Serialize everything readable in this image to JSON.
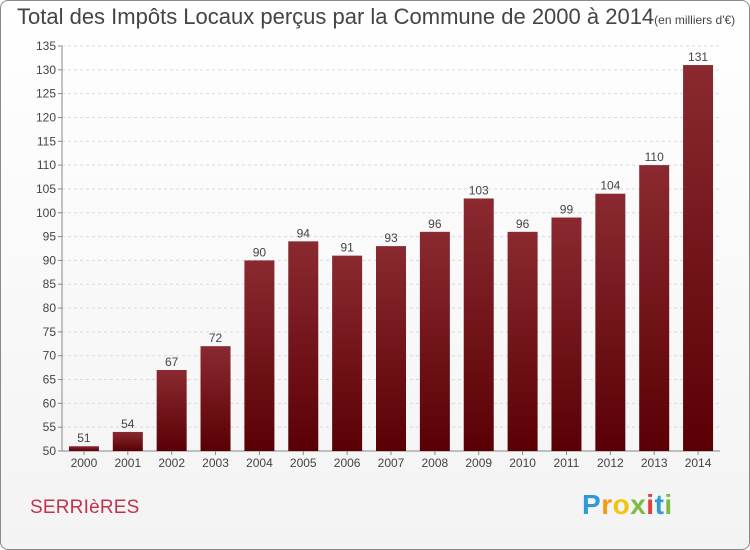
{
  "title": "Total des Impôts Locaux perçus par la Commune de 2000 à 2014",
  "unit_note": "(en milliers d'€)",
  "commune": "SERRIèRES",
  "logo": {
    "text": "Proxiti",
    "letters": [
      "P",
      "r",
      "o",
      "x",
      "i",
      "t",
      "i"
    ],
    "colors": [
      "#2e9bd6",
      "#f39c12",
      "#f1c40f",
      "#7dbb42",
      "#e23b3b",
      "#2e9bd6",
      "#7dbb42"
    ]
  },
  "chart_data": {
    "type": "bar",
    "categories": [
      "2000",
      "2001",
      "2002",
      "2003",
      "2004",
      "2005",
      "2006",
      "2007",
      "2008",
      "2009",
      "2010",
      "2011",
      "2012",
      "2013",
      "2014"
    ],
    "values": [
      51,
      54,
      67,
      72,
      90,
      94,
      91,
      93,
      96,
      103,
      96,
      99,
      104,
      110,
      131
    ],
    "ylim": [
      50,
      135
    ],
    "yticks": [
      50,
      55,
      60,
      65,
      70,
      75,
      80,
      85,
      90,
      95,
      100,
      105,
      110,
      115,
      120,
      125,
      130,
      135
    ],
    "grid": true,
    "bar_color": "#7a1a1e"
  }
}
